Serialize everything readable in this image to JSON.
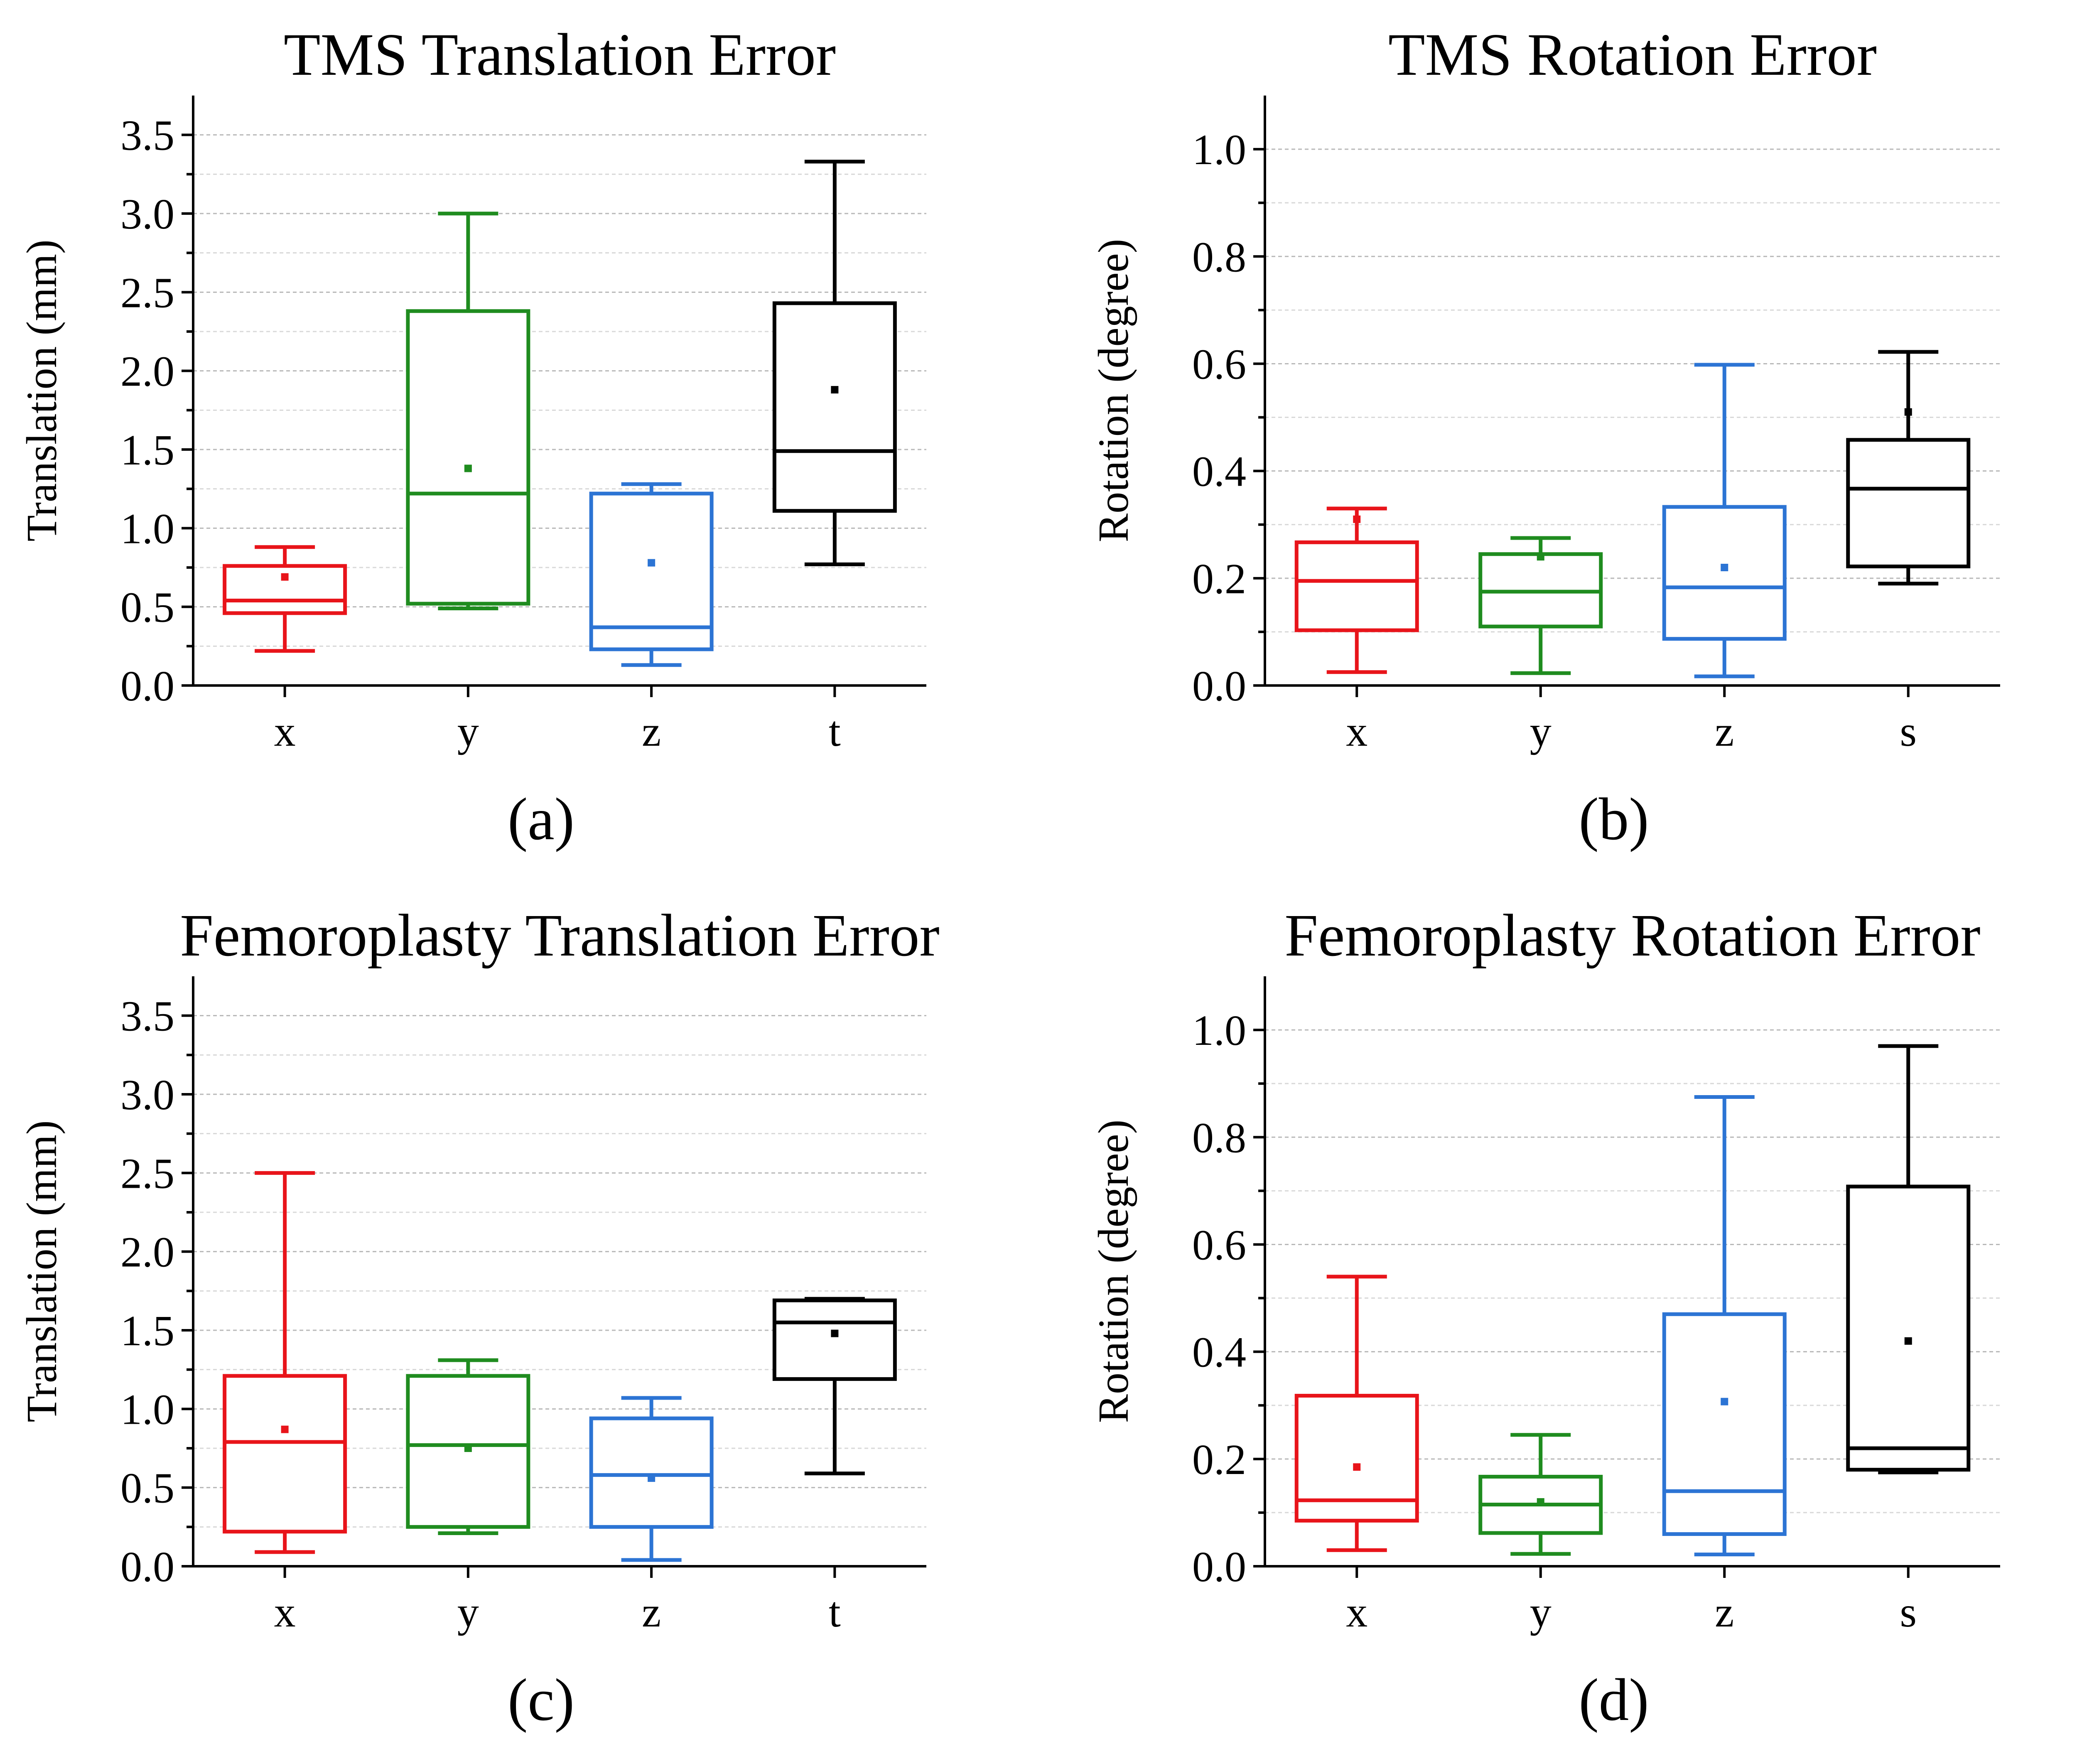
{
  "chart_data": [
    {
      "type": "box",
      "title": "TMS Translation Error",
      "caption": "(a)",
      "ylabel": "Translation (mm)",
      "xlabel": "",
      "ylim": [
        0,
        3.75
      ],
      "yticks": [
        "0.0",
        "0.5",
        "1.0",
        "1.5",
        "2.0",
        "2.5",
        "3.0",
        "3.5"
      ],
      "grid": true,
      "categories": [
        "x",
        "y",
        "z",
        "t"
      ],
      "boxes": [
        {
          "category": "x",
          "color": "#e8141a",
          "whisker_low": 0.22,
          "q1": 0.46,
          "median": 0.54,
          "q3": 0.76,
          "whisker_high": 0.88,
          "mean": 0.69
        },
        {
          "category": "y",
          "color": "#1f8c1f",
          "whisker_low": 0.49,
          "q1": 0.52,
          "median": 1.22,
          "q3": 2.38,
          "whisker_high": 3.0,
          "mean": 1.38
        },
        {
          "category": "z",
          "color": "#2c74d4",
          "whisker_low": 0.13,
          "q1": 0.23,
          "median": 0.37,
          "q3": 1.22,
          "whisker_high": 1.28,
          "mean": 0.78
        },
        {
          "category": "t",
          "color": "#000000",
          "whisker_low": 0.77,
          "q1": 1.11,
          "median": 1.49,
          "q3": 2.43,
          "whisker_high": 3.33,
          "mean": 1.88
        }
      ]
    },
    {
      "type": "box",
      "title": "TMS Rotation Error",
      "caption": "(b)",
      "ylabel": "Rotation (degree)",
      "xlabel": "",
      "ylim": [
        0,
        1.1
      ],
      "yticks": [
        "0.0",
        "0.2",
        "0.4",
        "0.6",
        "0.8",
        "1.0"
      ],
      "grid": true,
      "categories": [
        "x",
        "y",
        "z",
        "s"
      ],
      "boxes": [
        {
          "category": "x",
          "color": "#e8141a",
          "whisker_low": 0.025,
          "q1": 0.103,
          "median": 0.195,
          "q3": 0.267,
          "whisker_high": 0.33,
          "mean": 0.31
        },
        {
          "category": "y",
          "color": "#1f8c1f",
          "whisker_low": 0.023,
          "q1": 0.11,
          "median": 0.175,
          "q3": 0.245,
          "whisker_high": 0.275,
          "mean": 0.24
        },
        {
          "category": "z",
          "color": "#2c74d4",
          "whisker_low": 0.017,
          "q1": 0.087,
          "median": 0.183,
          "q3": 0.333,
          "whisker_high": 0.598,
          "mean": 0.22
        },
        {
          "category": "s",
          "color": "#000000",
          "whisker_low": 0.19,
          "q1": 0.222,
          "median": 0.367,
          "q3": 0.458,
          "whisker_high": 0.622,
          "mean": 0.51
        }
      ]
    },
    {
      "type": "box",
      "title": "Femoroplasty Translation Error",
      "caption": "(c)",
      "ylabel": "Translation (mm)",
      "xlabel": "",
      "ylim": [
        0,
        3.75
      ],
      "yticks": [
        "0.0",
        "0.5",
        "1.0",
        "1.5",
        "2.0",
        "2.5",
        "3.0",
        "3.5"
      ],
      "grid": true,
      "categories": [
        "x",
        "y",
        "z",
        "t"
      ],
      "boxes": [
        {
          "category": "x",
          "color": "#e8141a",
          "whisker_low": 0.09,
          "q1": 0.22,
          "median": 0.79,
          "q3": 1.21,
          "whisker_high": 2.5,
          "mean": 0.87
        },
        {
          "category": "y",
          "color": "#1f8c1f",
          "whisker_low": 0.21,
          "q1": 0.25,
          "median": 0.77,
          "q3": 1.21,
          "whisker_high": 1.31,
          "mean": 0.75
        },
        {
          "category": "z",
          "color": "#2c74d4",
          "whisker_low": 0.04,
          "q1": 0.25,
          "median": 0.58,
          "q3": 0.94,
          "whisker_high": 1.07,
          "mean": 0.56
        },
        {
          "category": "t",
          "color": "#000000",
          "whisker_low": 0.59,
          "q1": 1.19,
          "median": 1.55,
          "q3": 1.69,
          "whisker_high": 1.7,
          "mean": 1.48
        }
      ]
    },
    {
      "type": "box",
      "title": "Femoroplasty Rotation Error",
      "caption": "(d)",
      "ylabel": "Rotation (degree)",
      "xlabel": "",
      "ylim": [
        0,
        1.1
      ],
      "yticks": [
        "0.0",
        "0.2",
        "0.4",
        "0.6",
        "0.8",
        "1.0"
      ],
      "grid": true,
      "categories": [
        "x",
        "y",
        "z",
        "s"
      ],
      "boxes": [
        {
          "category": "x",
          "color": "#e8141a",
          "whisker_low": 0.03,
          "q1": 0.085,
          "median": 0.123,
          "q3": 0.318,
          "whisker_high": 0.54,
          "mean": 0.185
        },
        {
          "category": "y",
          "color": "#1f8c1f",
          "whisker_low": 0.023,
          "q1": 0.062,
          "median": 0.115,
          "q3": 0.167,
          "whisker_high": 0.245,
          "mean": 0.12
        },
        {
          "category": "z",
          "color": "#2c74d4",
          "whisker_low": 0.022,
          "q1": 0.06,
          "median": 0.14,
          "q3": 0.47,
          "whisker_high": 0.875,
          "mean": 0.307
        },
        {
          "category": "s",
          "color": "#000000",
          "whisker_low": 0.175,
          "q1": 0.18,
          "median": 0.22,
          "q3": 0.708,
          "whisker_high": 0.97,
          "mean": 0.42
        }
      ]
    }
  ]
}
